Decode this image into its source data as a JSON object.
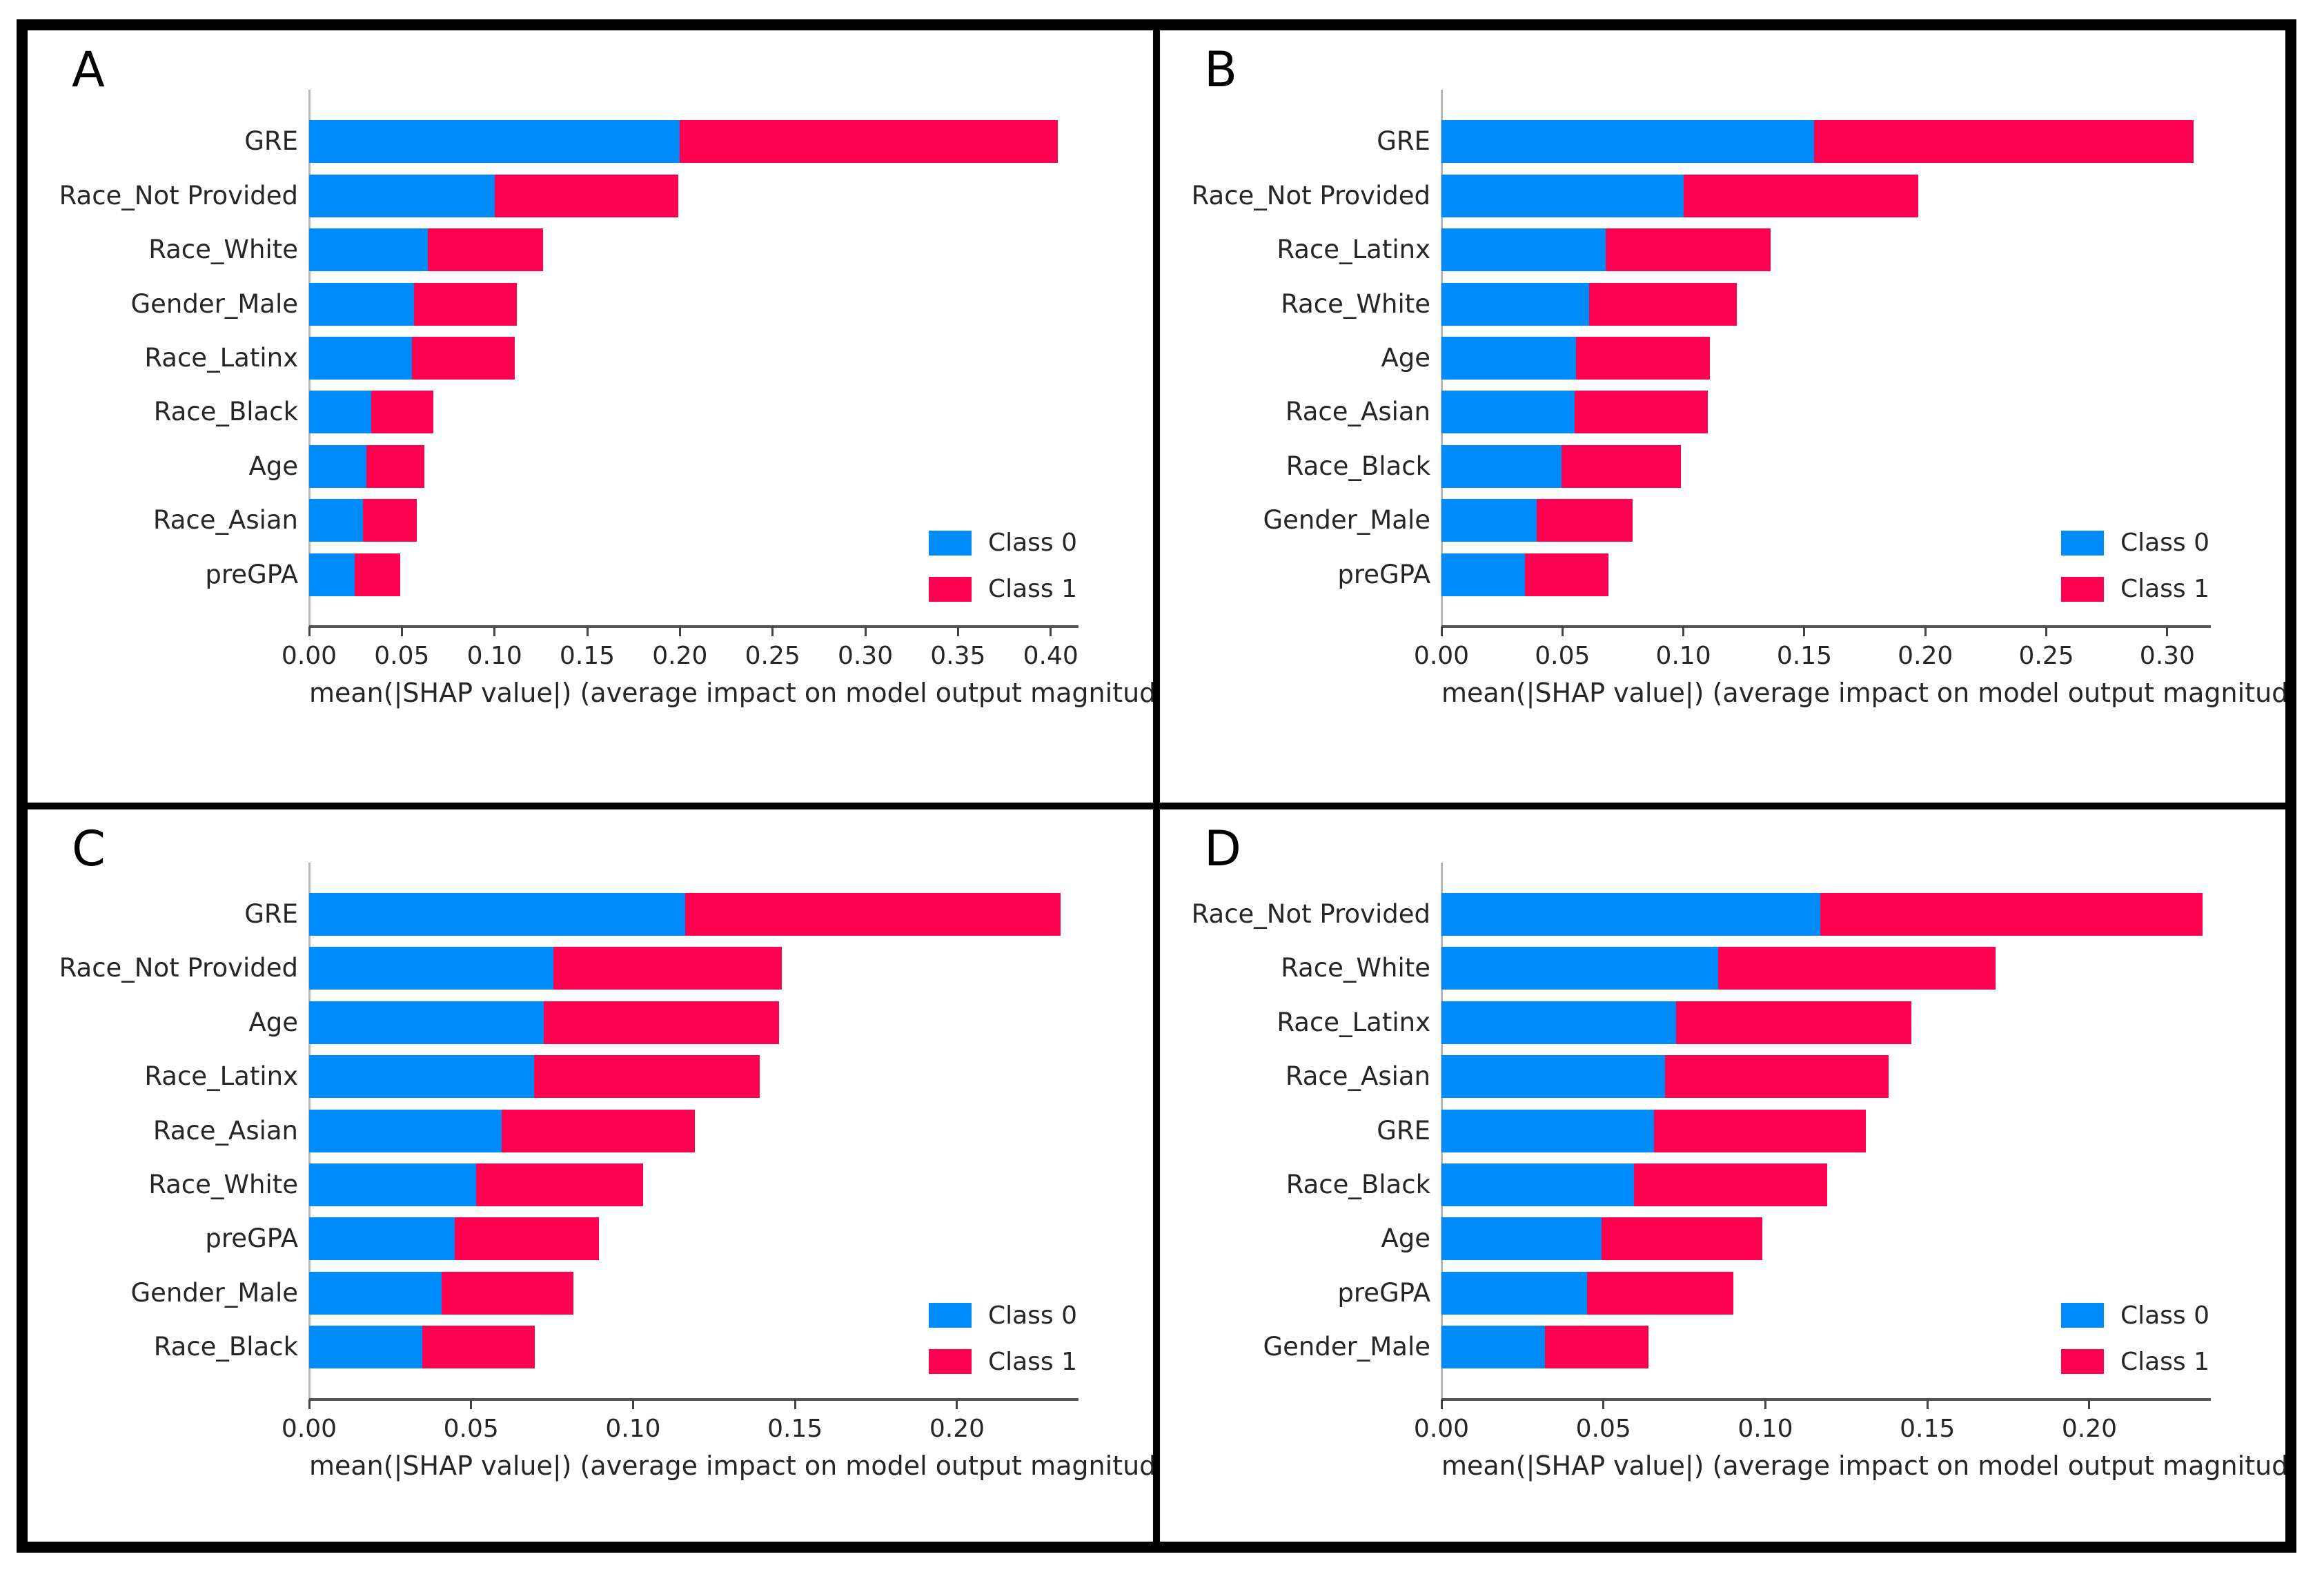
{
  "figure": {
    "xlabel": "mean(|SHAP value|) (average impact on model output magnitude)",
    "legend": {
      "class0_label": "Class 0",
      "class1_label": "Class 1"
    },
    "colors": {
      "class0": "#008bfb",
      "class1": "#ff0051",
      "text": "#262626",
      "x_axis": "#555555",
      "y_axis": "#b9b9b9",
      "frame": "#000000"
    }
  },
  "chart_data": [
    {
      "id": "A",
      "type": "bar",
      "orientation": "horizontal",
      "stacked": true,
      "grid": false,
      "title": "A",
      "categories": [
        "GRE",
        "Race_Not Provided",
        "Race_White",
        "Gender_Male",
        "Race_Latinx",
        "Race_Black",
        "Age",
        "Race_Asian",
        "preGPA"
      ],
      "series": [
        {
          "name": "Class 0",
          "color": "#008bfb",
          "values": [
            0.2,
            0.1,
            0.064,
            0.0565,
            0.0555,
            0.0335,
            0.031,
            0.029,
            0.0245
          ]
        },
        {
          "name": "Class 1",
          "color": "#ff0051",
          "values": [
            0.204,
            0.099,
            0.062,
            0.0555,
            0.0555,
            0.0335,
            0.031,
            0.029,
            0.0245
          ]
        }
      ],
      "xticks": [
        0.0,
        0.05,
        0.1,
        0.15,
        0.2,
        0.25,
        0.3,
        0.35,
        0.4
      ],
      "xlim": [
        0,
        0.415
      ],
      "xlabel": "mean(|SHAP value|) (average impact on model output magnitude)",
      "legend_position": "lower right"
    },
    {
      "id": "B",
      "type": "bar",
      "orientation": "horizontal",
      "stacked": true,
      "grid": false,
      "title": "B",
      "categories": [
        "GRE",
        "Race_Not Provided",
        "Race_Latinx",
        "Race_White",
        "Age",
        "Race_Asian",
        "Race_Black",
        "Gender_Male",
        "preGPA"
      ],
      "series": [
        {
          "name": "Class 0",
          "color": "#008bfb",
          "values": [
            0.154,
            0.1,
            0.068,
            0.061,
            0.0555,
            0.055,
            0.0495,
            0.0395,
            0.0345
          ]
        },
        {
          "name": "Class 1",
          "color": "#ff0051",
          "values": [
            0.157,
            0.097,
            0.068,
            0.061,
            0.0555,
            0.055,
            0.0495,
            0.0395,
            0.0345
          ]
        }
      ],
      "xticks": [
        0.0,
        0.05,
        0.1,
        0.15,
        0.2,
        0.25,
        0.3
      ],
      "xlim": [
        0,
        0.318
      ],
      "xlabel": "mean(|SHAP value|) (average impact on model output magnitude)",
      "legend_position": "lower right"
    },
    {
      "id": "C",
      "type": "bar",
      "orientation": "horizontal",
      "stacked": true,
      "grid": false,
      "title": "C",
      "categories": [
        "GRE",
        "Race_Not Provided",
        "Age",
        "Race_Latinx",
        "Race_Asian",
        "Race_White",
        "preGPA",
        "Gender_Male",
        "Race_Black"
      ],
      "series": [
        {
          "name": "Class 0",
          "color": "#008bfb",
          "values": [
            0.116,
            0.0755,
            0.0725,
            0.0695,
            0.0595,
            0.0515,
            0.045,
            0.041,
            0.035
          ]
        },
        {
          "name": "Class 1",
          "color": "#ff0051",
          "values": [
            0.116,
            0.0705,
            0.0725,
            0.0695,
            0.0595,
            0.0515,
            0.0444,
            0.0406,
            0.0346
          ]
        }
      ],
      "xticks": [
        0.0,
        0.05,
        0.1,
        0.15,
        0.2
      ],
      "xlim": [
        0,
        0.2375
      ],
      "xlabel": "mean(|SHAP value|) (average impact on model output magnitude)",
      "legend_position": "lower right"
    },
    {
      "id": "D",
      "type": "bar",
      "orientation": "horizontal",
      "stacked": true,
      "grid": false,
      "title": "D",
      "categories": [
        "Race_Not Provided",
        "Race_White",
        "Race_Latinx",
        "Race_Asian",
        "GRE",
        "Race_Black",
        "Age",
        "preGPA",
        "Gender_Male"
      ],
      "series": [
        {
          "name": "Class 0",
          "color": "#008bfb",
          "values": [
            0.117,
            0.0855,
            0.0725,
            0.069,
            0.0655,
            0.0595,
            0.0495,
            0.045,
            0.032
          ]
        },
        {
          "name": "Class 1",
          "color": "#ff0051",
          "values": [
            0.118,
            0.0855,
            0.0725,
            0.069,
            0.0655,
            0.0595,
            0.0495,
            0.045,
            0.032
          ]
        }
      ],
      "xticks": [
        0.0,
        0.05,
        0.1,
        0.15,
        0.2
      ],
      "xlim": [
        0,
        0.2375
      ],
      "xlabel": "mean(|SHAP value|) (average impact on model output magnitude)",
      "legend_position": "lower right"
    }
  ]
}
